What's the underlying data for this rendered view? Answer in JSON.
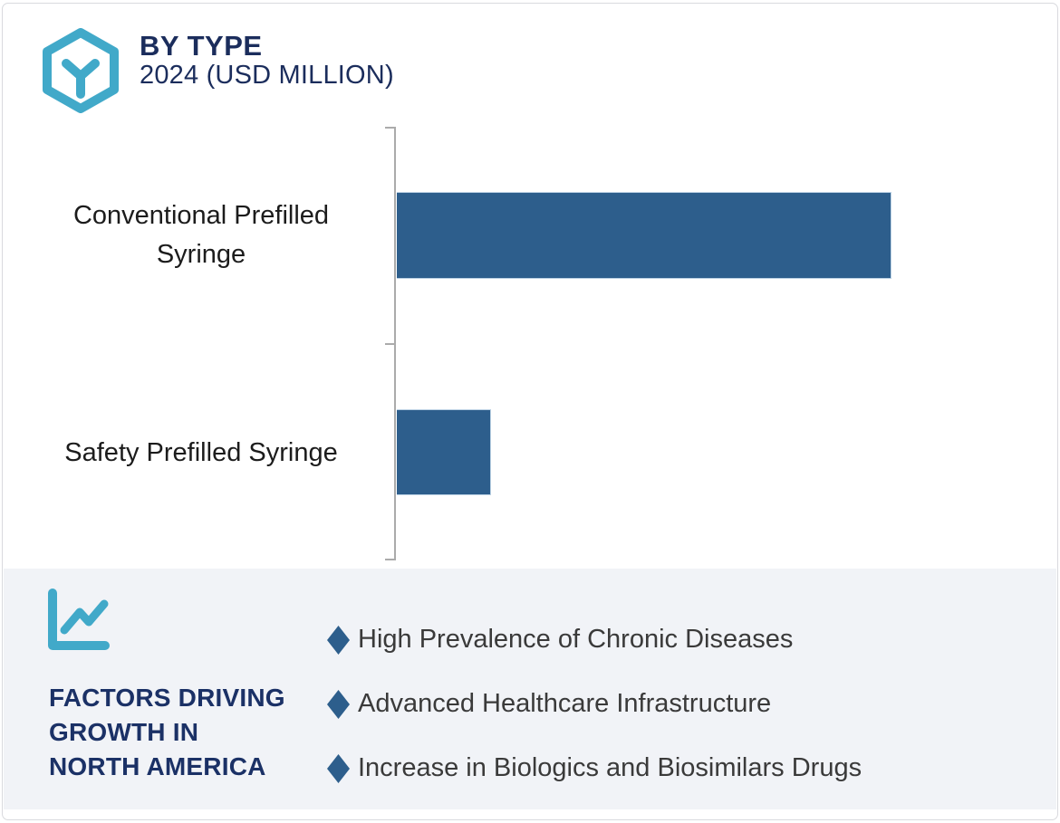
{
  "header": {
    "title": "BY TYPE",
    "subtitle": "2024 (USD MILLION)",
    "logo_icon": "hexagon-cube-icon"
  },
  "chart_data": {
    "type": "bar",
    "orientation": "horizontal",
    "title": "BY TYPE",
    "subtitle": "2024 (USD MILLION)",
    "categories": [
      "Conventional Prefilled Syringe",
      "Safety Prefilled Syringe"
    ],
    "values_relative_percent": [
      100,
      19
    ],
    "value_axis_labels_shown": false,
    "gridlines": false,
    "legend": false,
    "bar_color": "#2d5e8c",
    "axis_color": "#ababab"
  },
  "factors_panel": {
    "icon": "line-chart-icon",
    "heading_lines": [
      "FACTORS DRIVING",
      "GROWTH IN",
      "NORTH AMERICA"
    ],
    "bullet_marker": "diamond-icon",
    "bullets": [
      "High Prevalence of Chronic Diseases",
      "Advanced Healthcare Infrastructure",
      "Increase in Biologics and Biosimilars Drugs"
    ]
  },
  "colors": {
    "accent_teal": "#41a9c9",
    "bar_blue": "#2d5e8c",
    "title_navy": "#1b2d5c",
    "heading_navy": "#1b3166",
    "panel_background": "#f1f3f7",
    "axis_gray": "#ababab",
    "card_border": "#d9dade"
  }
}
